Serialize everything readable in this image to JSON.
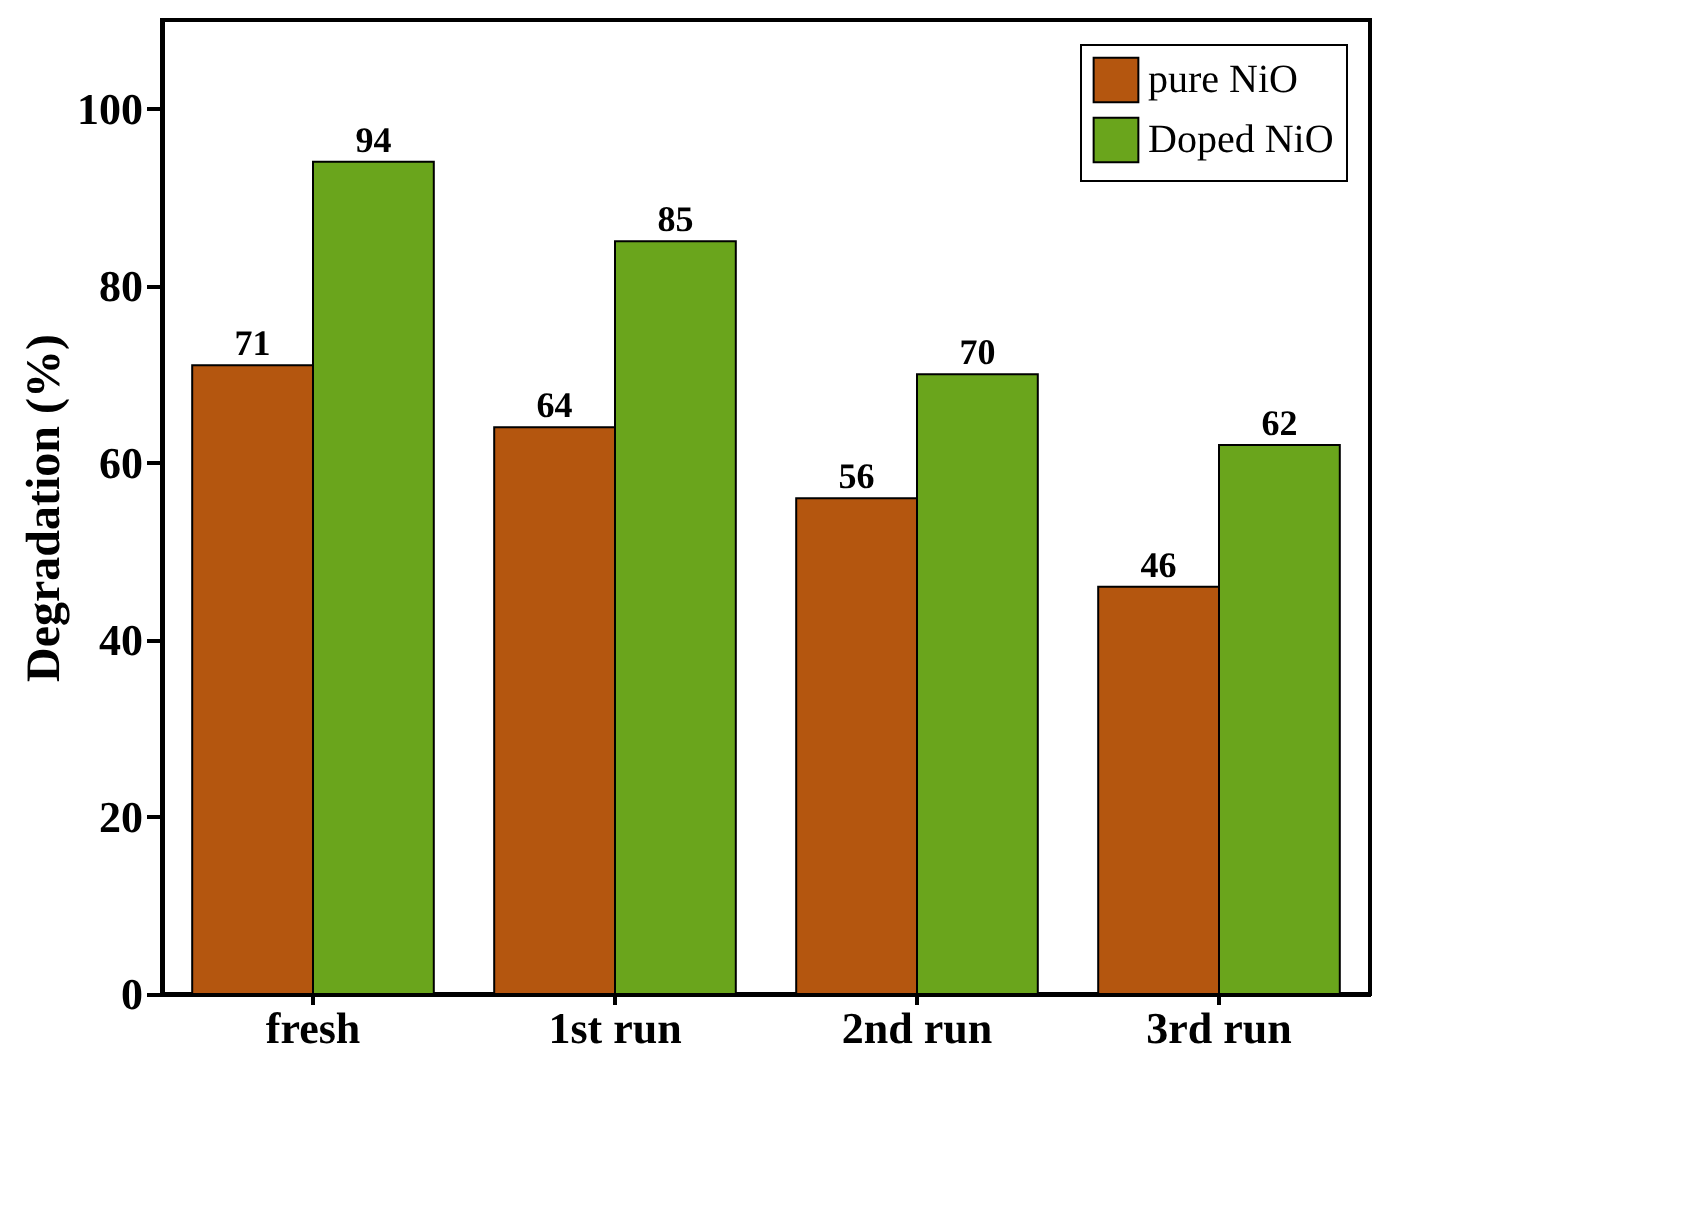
{
  "chart_data": {
    "type": "bar",
    "ylabel": "Degradation (%)",
    "categories": [
      "fresh",
      "1st run",
      "2nd run",
      "3rd run"
    ],
    "series": [
      {
        "name": "pure NiO",
        "color": "#b4560f",
        "values": [
          71,
          64,
          56,
          46
        ]
      },
      {
        "name": "Doped NiO",
        "color": "#6aa51c",
        "values": [
          94,
          85,
          70,
          62
        ]
      }
    ],
    "ylim": [
      0,
      110
    ],
    "yticks": [
      0,
      20,
      40,
      60,
      80,
      100
    ],
    "grid": false,
    "legend": "top right",
    "data_labels": true
  }
}
